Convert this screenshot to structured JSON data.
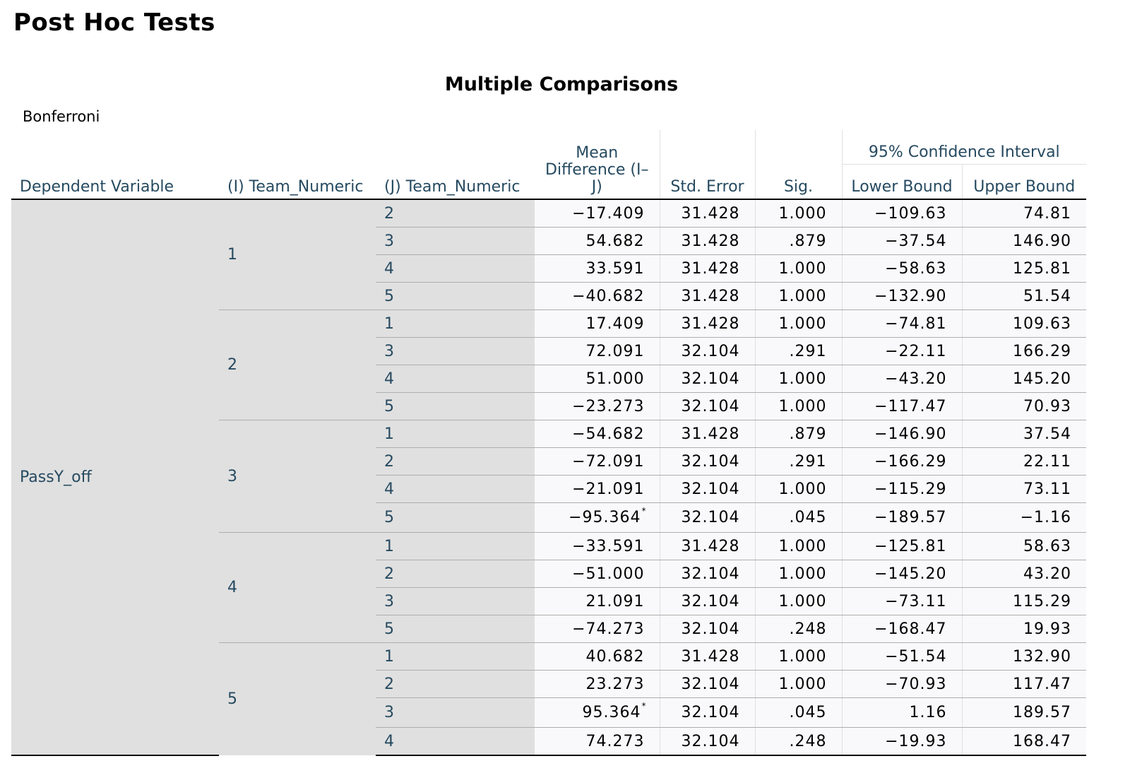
{
  "page_title": "Post Hoc Tests",
  "table": {
    "title": "Multiple Comparisons",
    "method": "Bonferroni",
    "headers": {
      "dependent_variable": "Dependent Variable",
      "i_team": "(I) Team_Numeric",
      "j_team": "(J) Team_Numeric",
      "mean_difference": "Mean Difference (I–J)",
      "std_error": "Std. Error",
      "sig": "Sig.",
      "ci_group": "95% Confidence Interval",
      "lower_bound": "Lower Bound",
      "upper_bound": "Upper Bound"
    },
    "dependent_variable": "PassY_off",
    "groups": [
      {
        "i": "1",
        "rows": [
          {
            "j": "2",
            "md": "-17.409",
            "flag": "",
            "se": "31.428",
            "sig": "1.000",
            "lb": "-109.63",
            "ub": "74.81"
          },
          {
            "j": "3",
            "md": "54.682",
            "flag": "",
            "se": "31.428",
            "sig": ".879",
            "lb": "-37.54",
            "ub": "146.90"
          },
          {
            "j": "4",
            "md": "33.591",
            "flag": "",
            "se": "31.428",
            "sig": "1.000",
            "lb": "-58.63",
            "ub": "125.81"
          },
          {
            "j": "5",
            "md": "-40.682",
            "flag": "",
            "se": "31.428",
            "sig": "1.000",
            "lb": "-132.90",
            "ub": "51.54"
          }
        ]
      },
      {
        "i": "2",
        "rows": [
          {
            "j": "1",
            "md": "17.409",
            "flag": "",
            "se": "31.428",
            "sig": "1.000",
            "lb": "-74.81",
            "ub": "109.63"
          },
          {
            "j": "3",
            "md": "72.091",
            "flag": "",
            "se": "32.104",
            "sig": ".291",
            "lb": "-22.11",
            "ub": "166.29"
          },
          {
            "j": "4",
            "md": "51.000",
            "flag": "",
            "se": "32.104",
            "sig": "1.000",
            "lb": "-43.20",
            "ub": "145.20"
          },
          {
            "j": "5",
            "md": "-23.273",
            "flag": "",
            "se": "32.104",
            "sig": "1.000",
            "lb": "-117.47",
            "ub": "70.93"
          }
        ]
      },
      {
        "i": "3",
        "rows": [
          {
            "j": "1",
            "md": "-54.682",
            "flag": "",
            "se": "31.428",
            "sig": ".879",
            "lb": "-146.90",
            "ub": "37.54"
          },
          {
            "j": "2",
            "md": "-72.091",
            "flag": "",
            "se": "32.104",
            "sig": ".291",
            "lb": "-166.29",
            "ub": "22.11"
          },
          {
            "j": "4",
            "md": "-21.091",
            "flag": "",
            "se": "32.104",
            "sig": "1.000",
            "lb": "-115.29",
            "ub": "73.11"
          },
          {
            "j": "5",
            "md": "-95.364",
            "flag": "*",
            "se": "32.104",
            "sig": ".045",
            "lb": "-189.57",
            "ub": "-1.16"
          }
        ]
      },
      {
        "i": "4",
        "rows": [
          {
            "j": "1",
            "md": "-33.591",
            "flag": "",
            "se": "31.428",
            "sig": "1.000",
            "lb": "-125.81",
            "ub": "58.63"
          },
          {
            "j": "2",
            "md": "-51.000",
            "flag": "",
            "se": "32.104",
            "sig": "1.000",
            "lb": "-145.20",
            "ub": "43.20"
          },
          {
            "j": "3",
            "md": "21.091",
            "flag": "",
            "se": "32.104",
            "sig": "1.000",
            "lb": "-73.11",
            "ub": "115.29"
          },
          {
            "j": "5",
            "md": "-74.273",
            "flag": "",
            "se": "32.104",
            "sig": ".248",
            "lb": "-168.47",
            "ub": "19.93"
          }
        ]
      },
      {
        "i": "5",
        "rows": [
          {
            "j": "1",
            "md": "40.682",
            "flag": "",
            "se": "31.428",
            "sig": "1.000",
            "lb": "-51.54",
            "ub": "132.90"
          },
          {
            "j": "2",
            "md": "23.273",
            "flag": "",
            "se": "32.104",
            "sig": "1.000",
            "lb": "-70.93",
            "ub": "117.47"
          },
          {
            "j": "3",
            "md": "95.364",
            "flag": "*",
            "se": "32.104",
            "sig": ".045",
            "lb": "1.16",
            "ub": "189.57"
          },
          {
            "j": "4",
            "md": "74.273",
            "flag": "",
            "se": "32.104",
            "sig": ".248",
            "lb": "-19.93",
            "ub": "168.47"
          }
        ]
      }
    ]
  }
}
